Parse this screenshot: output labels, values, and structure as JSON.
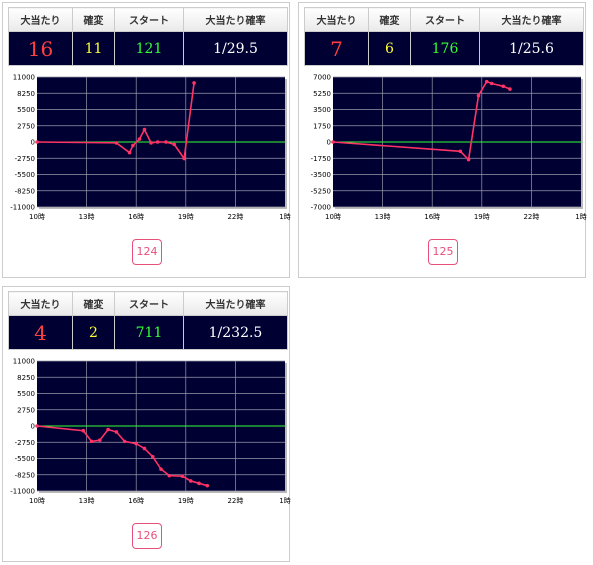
{
  "headers": {
    "hits": "大当たり",
    "kakuhen": "確変",
    "start": "スタート",
    "probability": "大当たり確率"
  },
  "colors": {
    "panel_bg": "#000033",
    "grid": "#9999aa",
    "zero_line": "#33ff33",
    "series_line": "#ff3366",
    "hits_text": "#ff4040",
    "kakuhen_text": "#ffff33",
    "start_text": "#33ff33"
  },
  "machines": [
    {
      "hits": "16",
      "kakuhen": "11",
      "start": "121",
      "probability": "1/29.5",
      "button_label": "124"
    },
    {
      "hits": "7",
      "kakuhen": "6",
      "start": "176",
      "probability": "1/25.6",
      "button_label": "125"
    },
    {
      "hits": "4",
      "kakuhen": "2",
      "start": "711",
      "probability": "1/232.5",
      "button_label": "126"
    }
  ],
  "chart_data": [
    {
      "type": "line",
      "grid": true,
      "x_ticks": [
        "10時",
        "13時",
        "16時",
        "19時",
        "22時",
        "1時"
      ],
      "xlim_hours": [
        10,
        25
      ],
      "ylim": [
        -11000,
        11000
      ],
      "y_ticks": [
        "11000",
        "8250",
        "5500",
        "2750",
        "0",
        "-2750",
        "-5500",
        "-8250",
        "-11000"
      ],
      "y_tick_values": [
        11000,
        8250,
        5500,
        2750,
        0,
        -2750,
        -5500,
        -8250,
        -11000
      ],
      "series": [
        {
          "x": [
            10.0,
            14.8,
            15.6,
            15.8,
            16.2,
            16.5,
            16.9,
            17.3,
            17.8,
            18.3,
            18.9,
            19.5
          ],
          "values": [
            0,
            -150,
            -1800,
            -600,
            500,
            2100,
            -150,
            0,
            0,
            -400,
            -2800,
            10000
          ]
        }
      ]
    },
    {
      "type": "line",
      "grid": true,
      "x_ticks": [
        "10時",
        "13時",
        "16時",
        "19時",
        "22時",
        "1時"
      ],
      "xlim_hours": [
        10,
        25
      ],
      "ylim": [
        -7000,
        7000
      ],
      "y_ticks": [
        "7000",
        "5250",
        "3500",
        "1750",
        "0",
        "-1750",
        "-3500",
        "-5250",
        "-7000"
      ],
      "y_tick_values": [
        7000,
        5250,
        3500,
        1750,
        0,
        -1750,
        -3500,
        -5250,
        -7000
      ],
      "series": [
        {
          "x": [
            10.0,
            17.7,
            18.2,
            18.8,
            19.3,
            19.6,
            20.3,
            20.7
          ],
          "values": [
            0,
            -1000,
            -1900,
            5000,
            6500,
            6300,
            6000,
            5700
          ]
        }
      ]
    },
    {
      "type": "line",
      "grid": true,
      "x_ticks": [
        "10時",
        "13時",
        "16時",
        "19時",
        "22時",
        "1時"
      ],
      "xlim_hours": [
        10,
        25
      ],
      "ylim": [
        -11000,
        11000
      ],
      "y_ticks": [
        "11000",
        "8250",
        "5500",
        "2750",
        "0",
        "-2750",
        "-5500",
        "-8250",
        "-11000"
      ],
      "y_tick_values": [
        11000,
        8250,
        5500,
        2750,
        0,
        -2750,
        -5500,
        -8250,
        -11000
      ],
      "series": [
        {
          "x": [
            10.0,
            12.8,
            13.3,
            13.8,
            14.3,
            14.8,
            15.3,
            16.0,
            16.5,
            17.0,
            17.5,
            18.0,
            18.8,
            19.3,
            19.8,
            20.3
          ],
          "values": [
            0,
            -800,
            -2600,
            -2400,
            -600,
            -1000,
            -2600,
            -3000,
            -3800,
            -5200,
            -7300,
            -8400,
            -8500,
            -9300,
            -9700,
            -10100
          ]
        }
      ]
    }
  ]
}
